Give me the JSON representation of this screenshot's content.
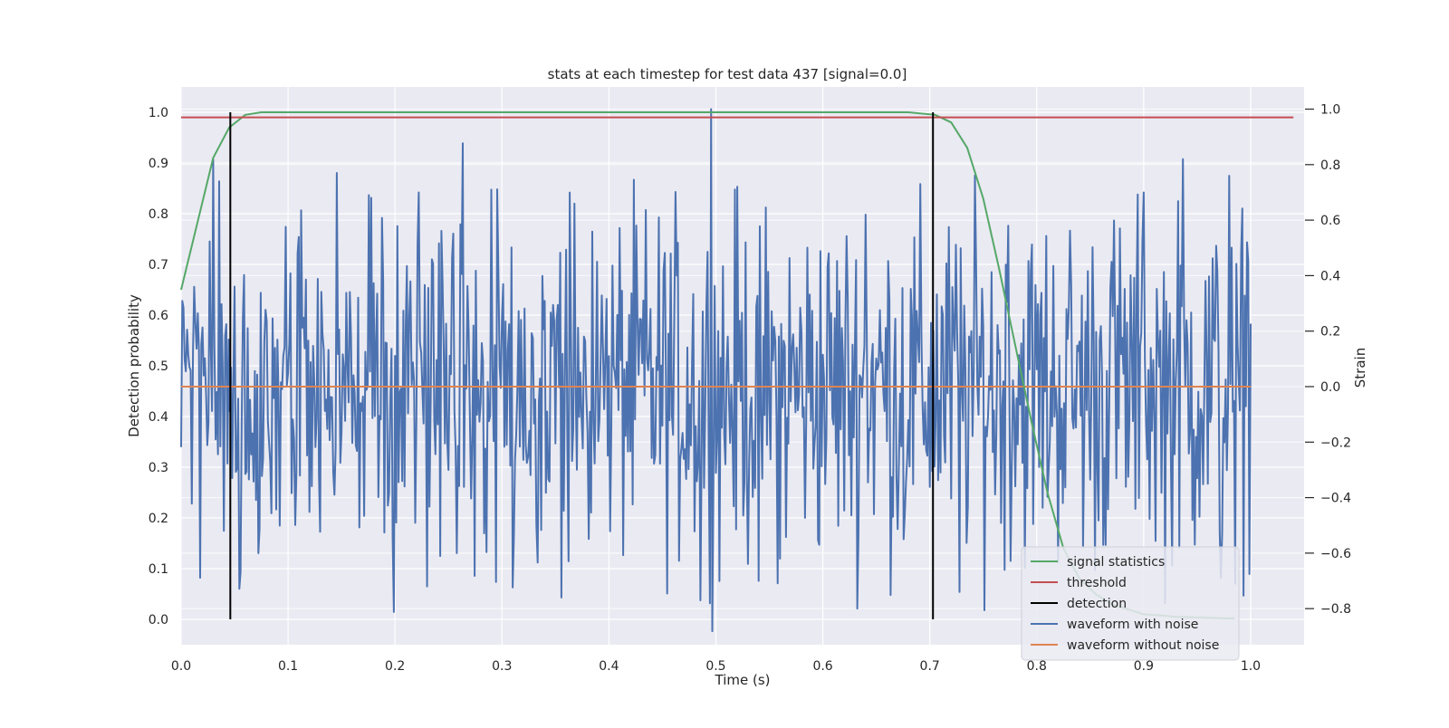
{
  "chart_data": {
    "type": "line",
    "title": "stats at each timestep for test data 437 [signal=0.0]",
    "xlabel": "Time (s)",
    "ylabel_left": "Detection probability",
    "ylabel_right": "Strain",
    "xlim": [
      0.0,
      1.05
    ],
    "ylim_left": [
      -0.05,
      1.05
    ],
    "ylim_right": [
      -0.93,
      1.08
    ],
    "x_ticks": [
      "0.0",
      "0.1",
      "0.2",
      "0.3",
      "0.4",
      "0.5",
      "0.6",
      "0.7",
      "0.8",
      "0.9",
      "1.0"
    ],
    "y_left_ticks": [
      "0.0",
      "0.1",
      "0.2",
      "0.3",
      "0.4",
      "0.5",
      "0.6",
      "0.7",
      "0.8",
      "0.9",
      "1.0"
    ],
    "y_right_ticks": [
      "−0.8",
      "−0.6",
      "−0.4",
      "−0.2",
      "0.0",
      "0.2",
      "0.4",
      "0.6",
      "0.8",
      "1.0"
    ],
    "grid": true,
    "legend_position": "bottom-right",
    "colors": {
      "signal_statistics": "#55a868",
      "threshold": "#c44e52",
      "detection": "#000000",
      "waveform_with_noise": "#4c72b0",
      "waveform_without_noise": "#dd8452",
      "plot_background": "#eaeaf2",
      "grid": "#ffffff"
    },
    "legend": [
      {
        "label": "signal statistics",
        "color": "#55a868"
      },
      {
        "label": "threshold",
        "color": "#c44e52"
      },
      {
        "label": "detection",
        "color": "#000000"
      },
      {
        "label": "waveform with noise",
        "color": "#4c72b0"
      },
      {
        "label": "waveform without noise",
        "color": "#dd8452"
      }
    ],
    "series": [
      {
        "name": "signal statistics",
        "axis": "left",
        "x": [
          0.0,
          0.015,
          0.03,
          0.045,
          0.06,
          0.075,
          0.1,
          0.3,
          0.5,
          0.68,
          0.705,
          0.72,
          0.735,
          0.75,
          0.765,
          0.78,
          0.795,
          0.81,
          0.825,
          0.84,
          0.855,
          0.87,
          0.885,
          0.9,
          0.915,
          0.93,
          0.945,
          0.96,
          0.975,
          0.985
        ],
        "y": [
          0.65,
          0.78,
          0.91,
          0.97,
          0.995,
          1.0,
          1.0,
          1.0,
          1.0,
          1.0,
          0.995,
          0.98,
          0.93,
          0.83,
          0.69,
          0.54,
          0.39,
          0.25,
          0.14,
          0.08,
          0.05,
          0.03,
          0.02,
          0.01,
          0.008,
          0.005,
          0.004,
          0.003,
          0.002,
          0.002
        ]
      },
      {
        "name": "threshold",
        "axis": "left",
        "x": [
          0.0,
          1.04
        ],
        "y": [
          0.99,
          0.99
        ]
      },
      {
        "name": "detection",
        "axis": "left",
        "segments": [
          {
            "x": 0.046,
            "y0": 0.0,
            "y1": 1.0
          },
          {
            "x": 0.703,
            "y0": 0.0,
            "y1": 1.0
          }
        ]
      },
      {
        "name": "waveform with noise",
        "axis": "right",
        "x_start": 0.0,
        "x_end": 1.0,
        "spikes": [
          {
            "x": 0.03,
            "y": 0.82
          },
          {
            "x": 0.035,
            "y": 0.74
          },
          {
            "x": 0.04,
            "y": -0.52
          },
          {
            "x": 0.056,
            "y": -0.67
          },
          {
            "x": 0.072,
            "y": -0.6
          },
          {
            "x": 0.145,
            "y": 0.77
          },
          {
            "x": 0.175,
            "y": 0.69
          },
          {
            "x": 0.198,
            "y": -0.55
          },
          {
            "x": 0.222,
            "y": 0.7
          },
          {
            "x": 0.23,
            "y": -0.72
          },
          {
            "x": 0.258,
            "y": -0.6
          },
          {
            "x": 0.29,
            "y": 0.71
          },
          {
            "x": 0.356,
            "y": -0.76
          },
          {
            "x": 0.485,
            "y": -0.77
          },
          {
            "x": 0.496,
            "y": 1.0
          },
          {
            "x": 0.52,
            "y": 0.72
          },
          {
            "x": 0.54,
            "y": -0.7
          },
          {
            "x": 0.56,
            "y": -0.62
          },
          {
            "x": 0.64,
            "y": 0.62
          },
          {
            "x": 0.675,
            "y": -0.55
          },
          {
            "x": 0.728,
            "y": -0.74
          },
          {
            "x": 0.773,
            "y": 0.58
          },
          {
            "x": 0.87,
            "y": 0.45
          },
          {
            "x": 0.9,
            "y": 0.7
          },
          {
            "x": 0.92,
            "y": -0.78
          },
          {
            "x": 0.937,
            "y": 0.82
          },
          {
            "x": 0.972,
            "y": -0.69
          },
          {
            "x": 0.98,
            "y": 0.76
          },
          {
            "x": 0.985,
            "y": -0.71
          },
          {
            "x": 0.997,
            "y": 0.52
          }
        ]
      },
      {
        "name": "waveform without noise",
        "axis": "right",
        "x": [
          0.0,
          1.0
        ],
        "y": [
          0.0,
          0.0
        ]
      }
    ]
  }
}
